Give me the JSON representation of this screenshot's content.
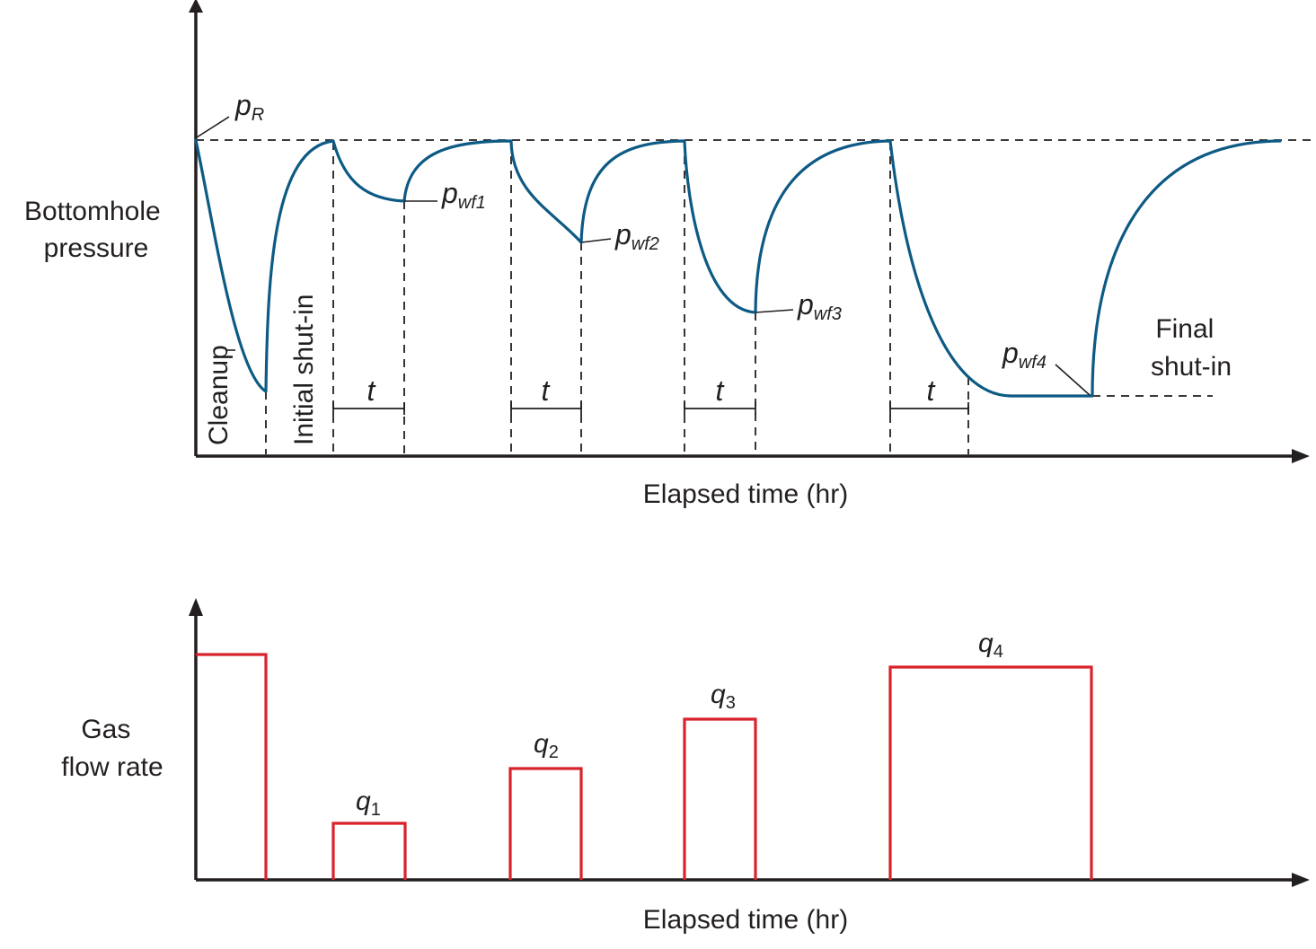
{
  "pressure_panel": {
    "ylabel": [
      "Bottomhole",
      "pressure"
    ],
    "xlabel": "Elapsed time (hr)",
    "reservoir_pressure_label": {
      "main": "p",
      "sub": "R"
    },
    "well_flowing_pressures": [
      {
        "main": "p",
        "sub": "wf1"
      },
      {
        "main": "p",
        "sub": "wf2"
      },
      {
        "main": "p",
        "sub": "wf3"
      },
      {
        "main": "p",
        "sub": "wf4"
      }
    ],
    "period_labels": {
      "cleanup": "Cleanup",
      "initial_shut_in": "Initial shut-in",
      "final_shut_in": [
        "Final",
        "shut-in"
      ]
    },
    "flow_period_label": "t"
  },
  "rate_panel": {
    "ylabel": [
      "Gas",
      "flow rate"
    ],
    "xlabel": "Elapsed time (hr)",
    "rate_labels": [
      {
        "main": "q",
        "sub": "1"
      },
      {
        "main": "q",
        "sub": "2"
      },
      {
        "main": "q",
        "sub": "3"
      },
      {
        "main": "q",
        "sub": "4"
      }
    ]
  },
  "colors": {
    "pressure_curve": "#0d5a84",
    "flow_rate": "#d8232a",
    "ink": "#231f20"
  }
}
